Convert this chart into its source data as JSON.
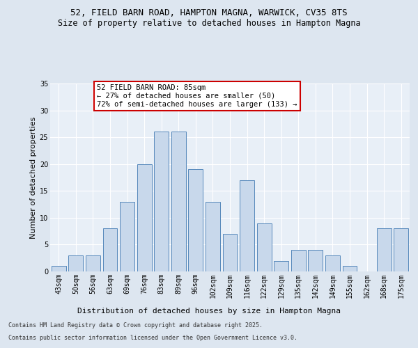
{
  "title1": "52, FIELD BARN ROAD, HAMPTON MAGNA, WARWICK, CV35 8TS",
  "title2": "Size of property relative to detached houses in Hampton Magna",
  "xlabel": "Distribution of detached houses by size in Hampton Magna",
  "ylabel": "Number of detached properties",
  "categories": [
    "43sqm",
    "50sqm",
    "56sqm",
    "63sqm",
    "69sqm",
    "76sqm",
    "83sqm",
    "89sqm",
    "96sqm",
    "102sqm",
    "109sqm",
    "116sqm",
    "122sqm",
    "129sqm",
    "135sqm",
    "142sqm",
    "149sqm",
    "155sqm",
    "162sqm",
    "168sqm",
    "175sqm"
  ],
  "values": [
    1,
    3,
    3,
    8,
    13,
    20,
    26,
    26,
    19,
    13,
    7,
    17,
    9,
    2,
    4,
    4,
    3,
    1,
    0,
    8,
    8
  ],
  "bar_color": "#c8d8eb",
  "bar_edge_color": "#5588bb",
  "ylim": [
    0,
    35
  ],
  "yticks": [
    0,
    5,
    10,
    15,
    20,
    25,
    30,
    35
  ],
  "annotation_text": "52 FIELD BARN ROAD: 85sqm\n← 27% of detached houses are smaller (50)\n72% of semi-detached houses are larger (133) →",
  "annotation_box_color": "#ffffff",
  "annotation_box_edge": "#cc0000",
  "bg_color": "#dde6f0",
  "plot_bg_color": "#e8eff7",
  "footer1": "Contains HM Land Registry data © Crown copyright and database right 2025.",
  "footer2": "Contains public sector information licensed under the Open Government Licence v3.0.",
  "title1_fontsize": 9,
  "title2_fontsize": 8.5,
  "xlabel_fontsize": 8,
  "ylabel_fontsize": 8,
  "tick_fontsize": 7,
  "annotation_fontsize": 7.5,
  "footer_fontsize": 6
}
